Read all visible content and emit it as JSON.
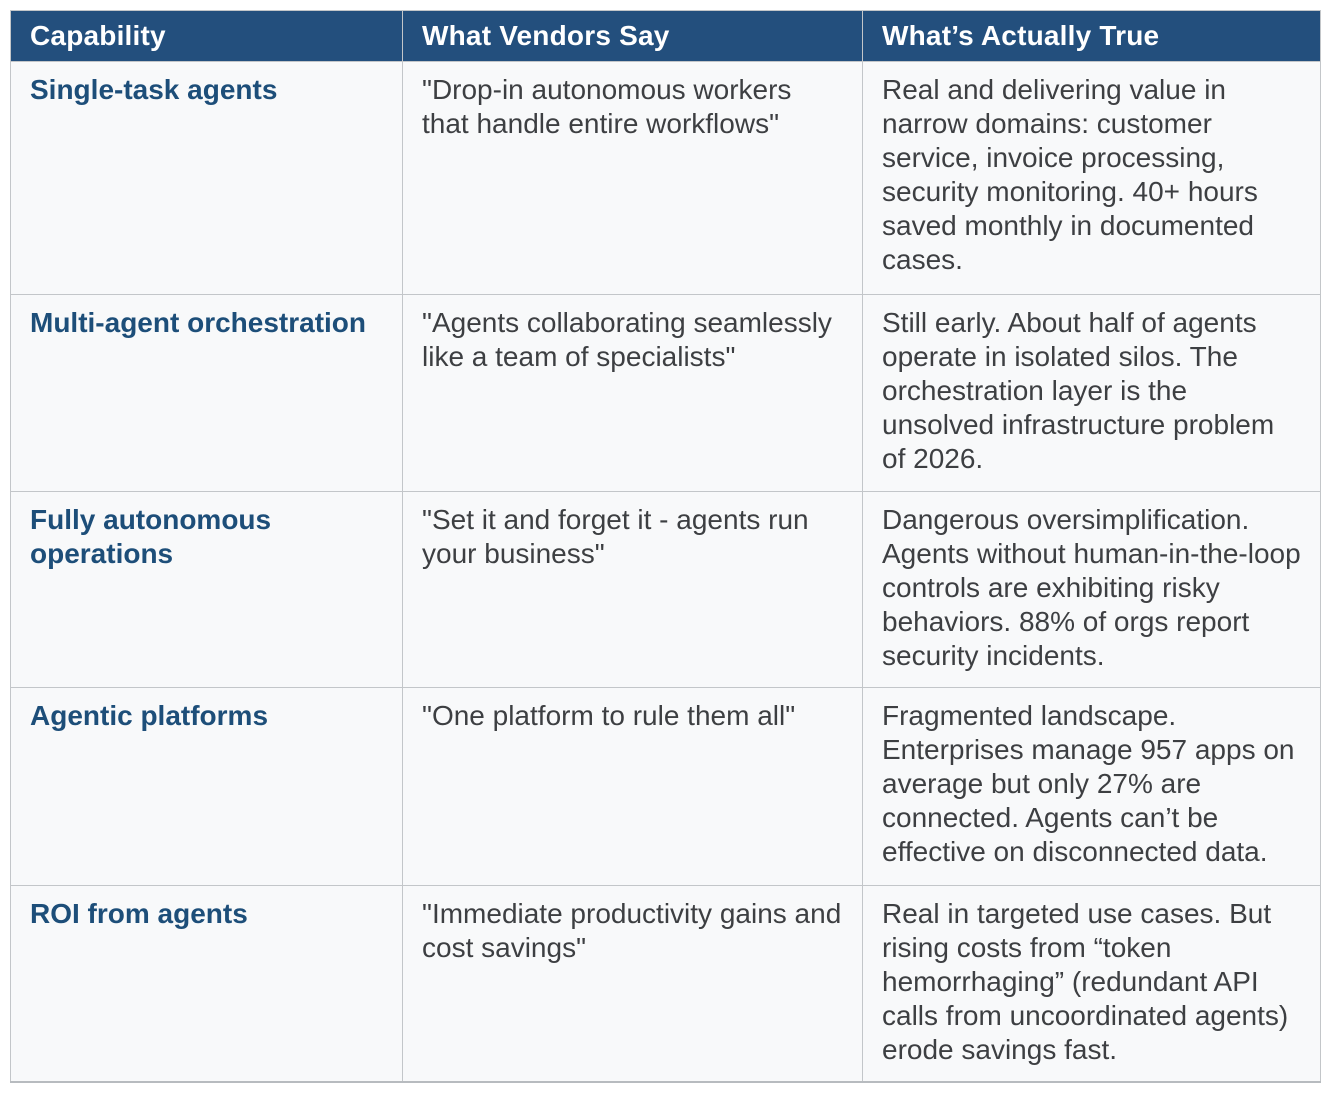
{
  "table": {
    "headers": [
      "Capability",
      "What Vendors Say",
      "What’s Actually True"
    ],
    "rows": [
      {
        "capability": "Single-task agents",
        "vendors": "\"Drop-in autonomous workers that handle entire workflows\"",
        "truth": "Real and delivering value in narrow domains: customer service, invoice processing, security monitoring. 40+ hours saved monthly in documented cases."
      },
      {
        "capability": "Multi-agent orchestration",
        "vendors": "\"Agents collaborating seamlessly like a team of specialists\"",
        "truth": "Still early. About half of agents operate in isolated silos. The orchestration layer is the unsolved infrastructure problem of 2026."
      },
      {
        "capability": "Fully autonomous operations",
        "vendors": "\"Set it and forget it - agents run your business\"",
        "truth": "Dangerous oversimplification. Agents without human-in-the-loop controls are exhibiting risky behaviors. 88% of orgs report security incidents."
      },
      {
        "capability": "Agentic platforms",
        "vendors": "\"One platform to rule them all\"",
        "truth": "Fragmented landscape. Enterprises manage 957 apps on average but only 27% are connected. Agents can’t be effective on disconnected data."
      },
      {
        "capability": "ROI from agents",
        "vendors": "\"Immediate productivity gains and cost savings\"",
        "truth": "Real in targeted use cases. But rising costs from “token hemorrhaging” (redundant API calls from uncoordinated agents) erode savings fast."
      }
    ]
  },
  "colors": {
    "header_bg": "#234f7d",
    "header_text": "#ffffff",
    "capability_text": "#1d4e79",
    "body_text": "#3d3f42",
    "body_bg": "#f8f9fa",
    "border": "#c3c6c9"
  }
}
